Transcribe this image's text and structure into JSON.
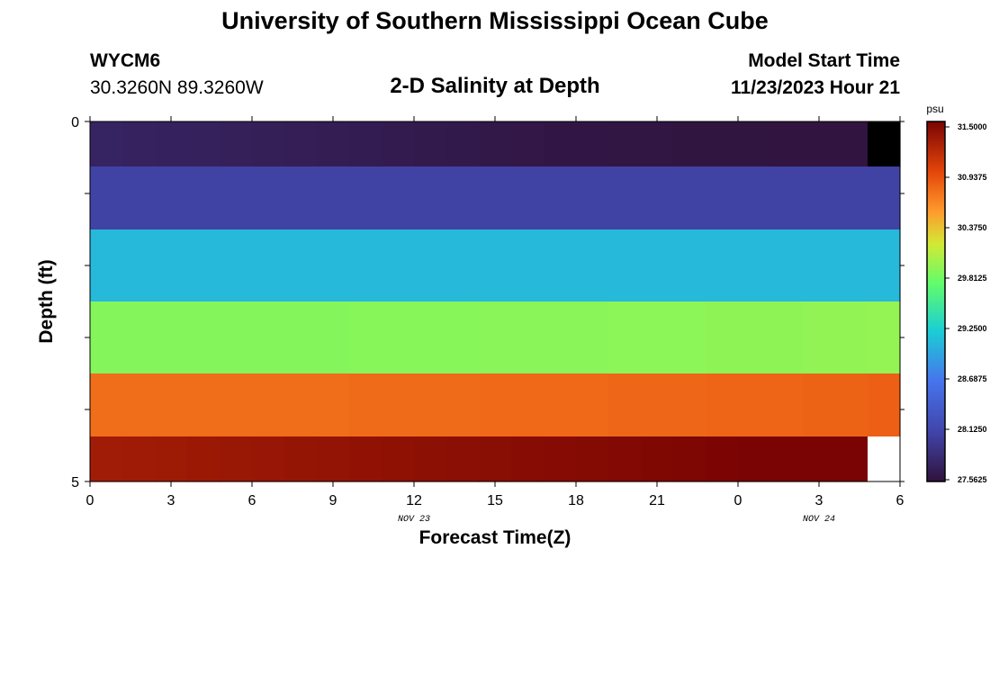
{
  "header": {
    "title": "University of Southern Mississippi Ocean Cube",
    "station_id": "WYCM6",
    "coordinates": "30.3260N  89.3260W",
    "plot_title": "2-D Salinity at Depth",
    "model_start_label": "Model Start Time",
    "model_start_value": "11/23/2023 Hour 21"
  },
  "footer": {
    "title": "University of Southern Mississippi Ocean Cube"
  },
  "chart_data": {
    "type": "heatmap",
    "title": "2-D Salinity at Depth",
    "xlabel": "Forecast Time(Z)",
    "ylabel": "Depth (ft)",
    "x_tick_labels": [
      "0",
      "3",
      "6",
      "9",
      "12",
      "15",
      "18",
      "21",
      "0",
      "3",
      "6"
    ],
    "x_date_labels": [
      {
        "label": "NOV 23",
        "tick_index": 4
      },
      {
        "label": "NOV 24",
        "tick_index": 9
      }
    ],
    "x_range_hours": [
      0,
      30
    ],
    "y_range_ft": [
      0,
      5
    ],
    "y_tick_labels": [
      "0",
      "5"
    ],
    "depth_layers_ft": [
      0.25,
      1.0,
      2.0,
      3.0,
      4.0,
      4.75
    ],
    "time_hours": [
      0,
      1.2,
      2.4,
      3.6,
      4.8,
      6.0,
      7.2,
      8.4,
      9.6,
      10.8,
      12.0,
      13.2,
      14.4,
      15.6,
      16.8,
      18.0,
      19.2,
      20.4,
      21.6,
      22.8,
      24.0,
      25.2,
      26.4,
      27.6,
      28.8
    ],
    "salinity_psu": [
      [
        27.75,
        27.74,
        27.73,
        27.72,
        27.71,
        27.7,
        27.69,
        27.68,
        27.67,
        27.66,
        27.65,
        27.64,
        27.63,
        27.62,
        27.61,
        27.61,
        27.6,
        27.6,
        27.59,
        27.59,
        27.59,
        27.58,
        27.58,
        27.58,
        null
      ],
      [
        28.08,
        28.08,
        28.08,
        28.08,
        28.08,
        28.08,
        28.08,
        28.08,
        28.08,
        28.08,
        28.08,
        28.08,
        28.08,
        28.08,
        28.08,
        28.08,
        28.08,
        28.08,
        28.08,
        28.08,
        28.08,
        28.08,
        28.08,
        28.08,
        28.08
      ],
      [
        29.08,
        29.08,
        29.08,
        29.08,
        29.08,
        29.08,
        29.08,
        29.08,
        29.08,
        29.08,
        29.08,
        29.08,
        29.08,
        29.08,
        29.08,
        29.08,
        29.08,
        29.08,
        29.08,
        29.08,
        29.08,
        29.08,
        29.08,
        29.08,
        29.08
      ],
      [
        29.86,
        29.86,
        29.86,
        29.86,
        29.86,
        29.86,
        29.86,
        29.86,
        29.87,
        29.87,
        29.87,
        29.87,
        29.88,
        29.88,
        29.88,
        29.88,
        29.89,
        29.89,
        29.89,
        29.9,
        29.9,
        29.9,
        29.91,
        29.91,
        29.92
      ],
      [
        30.75,
        30.75,
        30.75,
        30.75,
        30.75,
        30.75,
        30.75,
        30.75,
        30.76,
        30.76,
        30.76,
        30.76,
        30.77,
        30.77,
        30.77,
        30.77,
        30.78,
        30.78,
        30.78,
        30.79,
        30.79,
        30.79,
        30.8,
        30.8,
        30.82
      ],
      [
        31.3,
        31.31,
        31.32,
        31.33,
        31.34,
        31.35,
        31.36,
        31.37,
        31.38,
        31.39,
        31.4,
        31.41,
        31.42,
        31.43,
        31.44,
        31.45,
        31.46,
        31.47,
        31.48,
        31.49,
        31.5,
        31.5,
        31.5,
        31.5,
        null
      ]
    ],
    "colorbar": {
      "unit": "psu",
      "min": 27.5625,
      "max": 31.5,
      "tick_labels": [
        "31.5000",
        "30.9375",
        "30.3750",
        "29.8125",
        "29.2500",
        "28.6875",
        "28.1250",
        "27.5625"
      ]
    },
    "grid": false,
    "legend": "right"
  }
}
